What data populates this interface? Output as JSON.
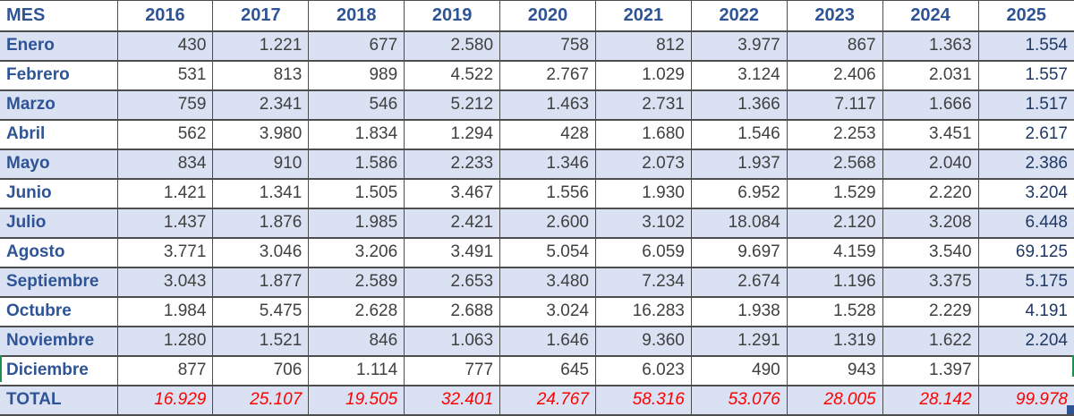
{
  "table": {
    "columns": [
      "MES",
      "2016",
      "2017",
      "2018",
      "2019",
      "2020",
      "2021",
      "2022",
      "2023",
      "2024",
      "2025"
    ],
    "rows": [
      {
        "label": "Enero",
        "values": [
          "430",
          "1.221",
          "677",
          "2.580",
          "758",
          "812",
          "3.977",
          "867",
          "1.363",
          "1.554"
        ]
      },
      {
        "label": "Febrero",
        "values": [
          "531",
          "813",
          "989",
          "4.522",
          "2.767",
          "1.029",
          "3.124",
          "2.406",
          "2.031",
          "1.557"
        ]
      },
      {
        "label": "Marzo",
        "values": [
          "759",
          "2.341",
          "546",
          "5.212",
          "1.463",
          "2.731",
          "1.366",
          "7.117",
          "1.666",
          "1.517"
        ]
      },
      {
        "label": "Abril",
        "values": [
          "562",
          "3.980",
          "1.834",
          "1.294",
          "428",
          "1.680",
          "1.546",
          "2.253",
          "3.451",
          "2.617"
        ]
      },
      {
        "label": "Mayo",
        "values": [
          "834",
          "910",
          "1.586",
          "2.233",
          "1.346",
          "2.073",
          "1.937",
          "2.568",
          "2.040",
          "2.386"
        ]
      },
      {
        "label": "Junio",
        "values": [
          "1.421",
          "1.341",
          "1.505",
          "3.467",
          "1.556",
          "1.930",
          "6.952",
          "1.529",
          "2.220",
          "3.204"
        ]
      },
      {
        "label": "Julio",
        "values": [
          "1.437",
          "1.876",
          "1.985",
          "2.421",
          "2.600",
          "3.102",
          "18.084",
          "2.120",
          "3.208",
          "6.448"
        ]
      },
      {
        "label": "Agosto",
        "values": [
          "3.771",
          "3.046",
          "3.206",
          "3.491",
          "5.054",
          "6.059",
          "9.697",
          "4.159",
          "3.540",
          "69.125"
        ]
      },
      {
        "label": "Septiembre",
        "values": [
          "3.043",
          "1.877",
          "2.589",
          "2.653",
          "3.480",
          "7.234",
          "2.674",
          "1.196",
          "3.375",
          "5.175"
        ]
      },
      {
        "label": "Octubre",
        "values": [
          "1.984",
          "5.475",
          "2.628",
          "2.688",
          "3.024",
          "16.283",
          "1.938",
          "1.528",
          "2.229",
          "4.191"
        ]
      },
      {
        "label": "Noviembre",
        "values": [
          "1.280",
          "1.521",
          "846",
          "1.063",
          "1.646",
          "9.360",
          "1.291",
          "1.319",
          "1.622",
          "2.204"
        ]
      },
      {
        "label": "Diciembre",
        "values": [
          "877",
          "706",
          "1.114",
          "777",
          "645",
          "6.023",
          "490",
          "943",
          "1.397",
          ""
        ]
      }
    ],
    "total": {
      "label": "TOTAL",
      "values": [
        "16.929",
        "25.107",
        "19.505",
        "32.401",
        "24.767",
        "58.316",
        "53.076",
        "28.005",
        "28.142",
        "99.978"
      ]
    }
  },
  "colors": {
    "header_text": "#2F5496",
    "month_text": "#2F5496",
    "value_text": "#404040",
    "year2025_text": "#1F3864",
    "total_text": "#FF0000",
    "band_bg": "#D9E1F2",
    "row_bg": "#FFFFFF",
    "border": "#4D4D4D",
    "selection_green": "#1E8F4F",
    "table_handle_blue": "#2F5496"
  }
}
